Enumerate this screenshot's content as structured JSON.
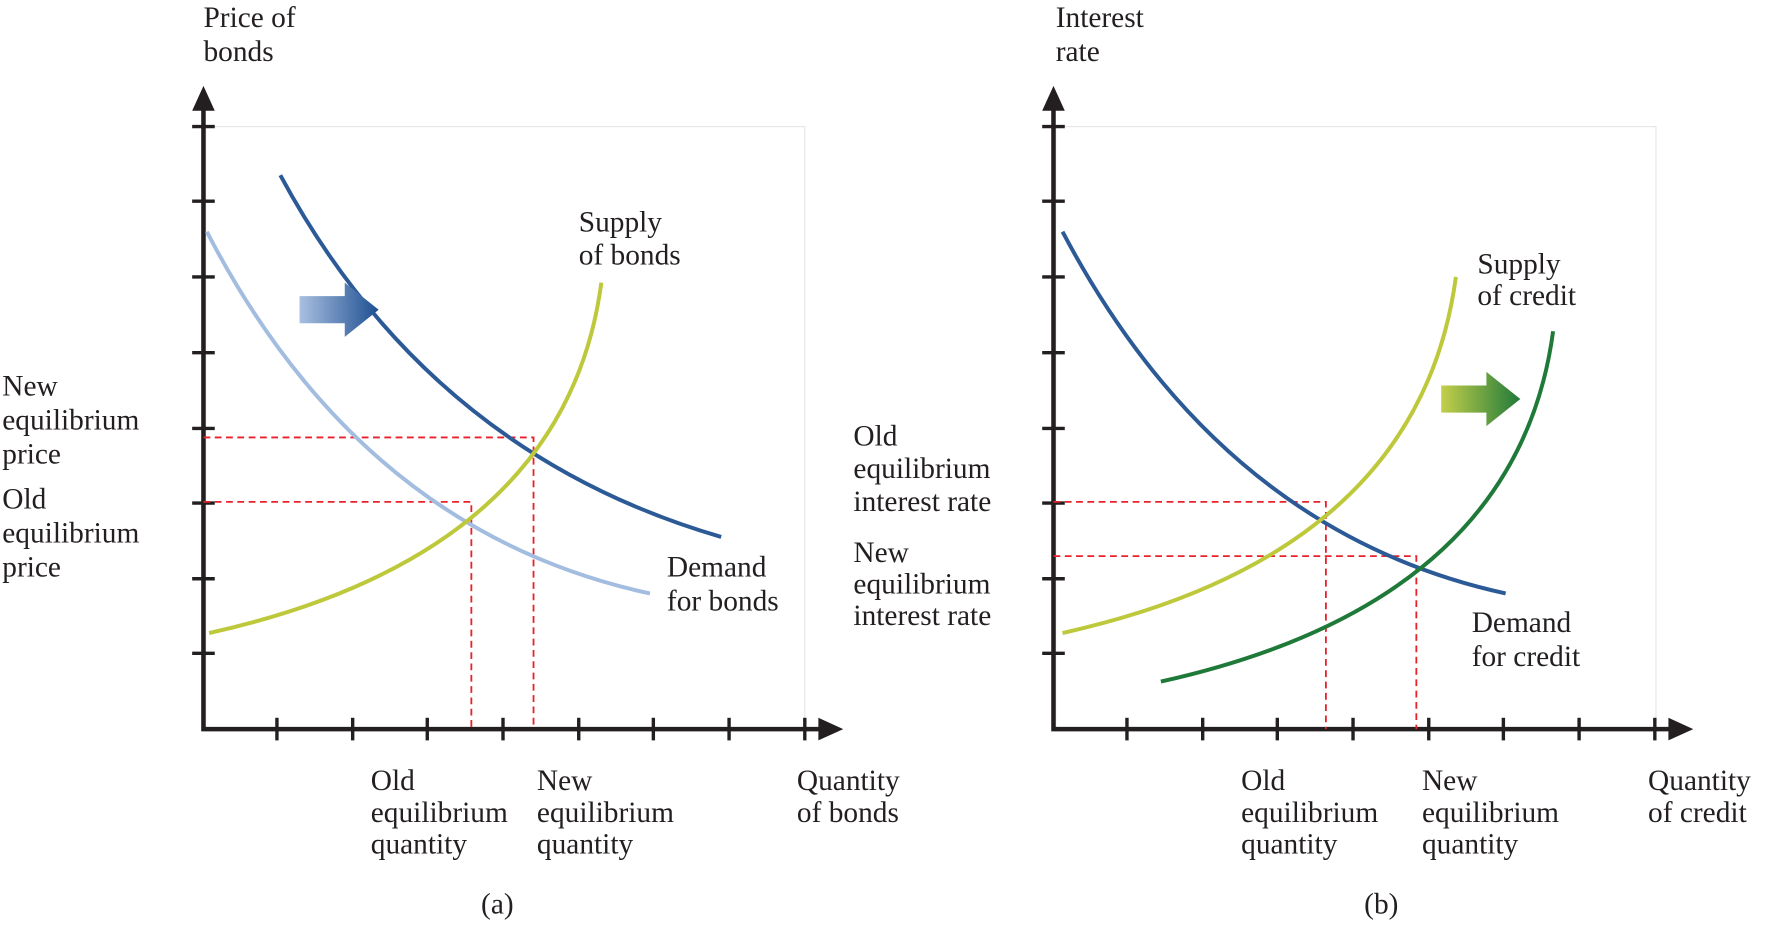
{
  "panels": [
    {
      "caption": "(a)",
      "y_axis_label": [
        "Price of",
        "bonds"
      ],
      "x_axis_label": [
        "Quantity",
        "of bonds"
      ],
      "supply_label": [
        "Supply",
        "of bonds"
      ],
      "demand_label": [
        "Demand",
        "for bonds"
      ],
      "y_marker_labels": [
        [
          "New",
          "equilibrium",
          "price"
        ],
        [
          "Old",
          "equilibrium",
          "price"
        ]
      ],
      "x_marker_labels": [
        [
          "Old",
          "equilibrium",
          "quantity"
        ],
        [
          "New",
          "equilibrium",
          "quantity"
        ]
      ]
    },
    {
      "caption": "(b)",
      "y_axis_label": [
        "Interest",
        "rate"
      ],
      "x_axis_label": [
        "Quantity",
        "of credit"
      ],
      "supply_label": [
        "Supply",
        "of credit"
      ],
      "demand_label": [
        "Demand",
        "for credit"
      ],
      "y_marker_labels": [
        [
          "Old",
          "equilibrium",
          "interest rate"
        ],
        [
          "New",
          "equilibrium",
          "interest rate"
        ]
      ],
      "x_marker_labels": [
        [
          "Old",
          "equilibrium",
          "quantity"
        ],
        [
          "New",
          "equilibrium",
          "quantity"
        ]
      ]
    }
  ]
}
